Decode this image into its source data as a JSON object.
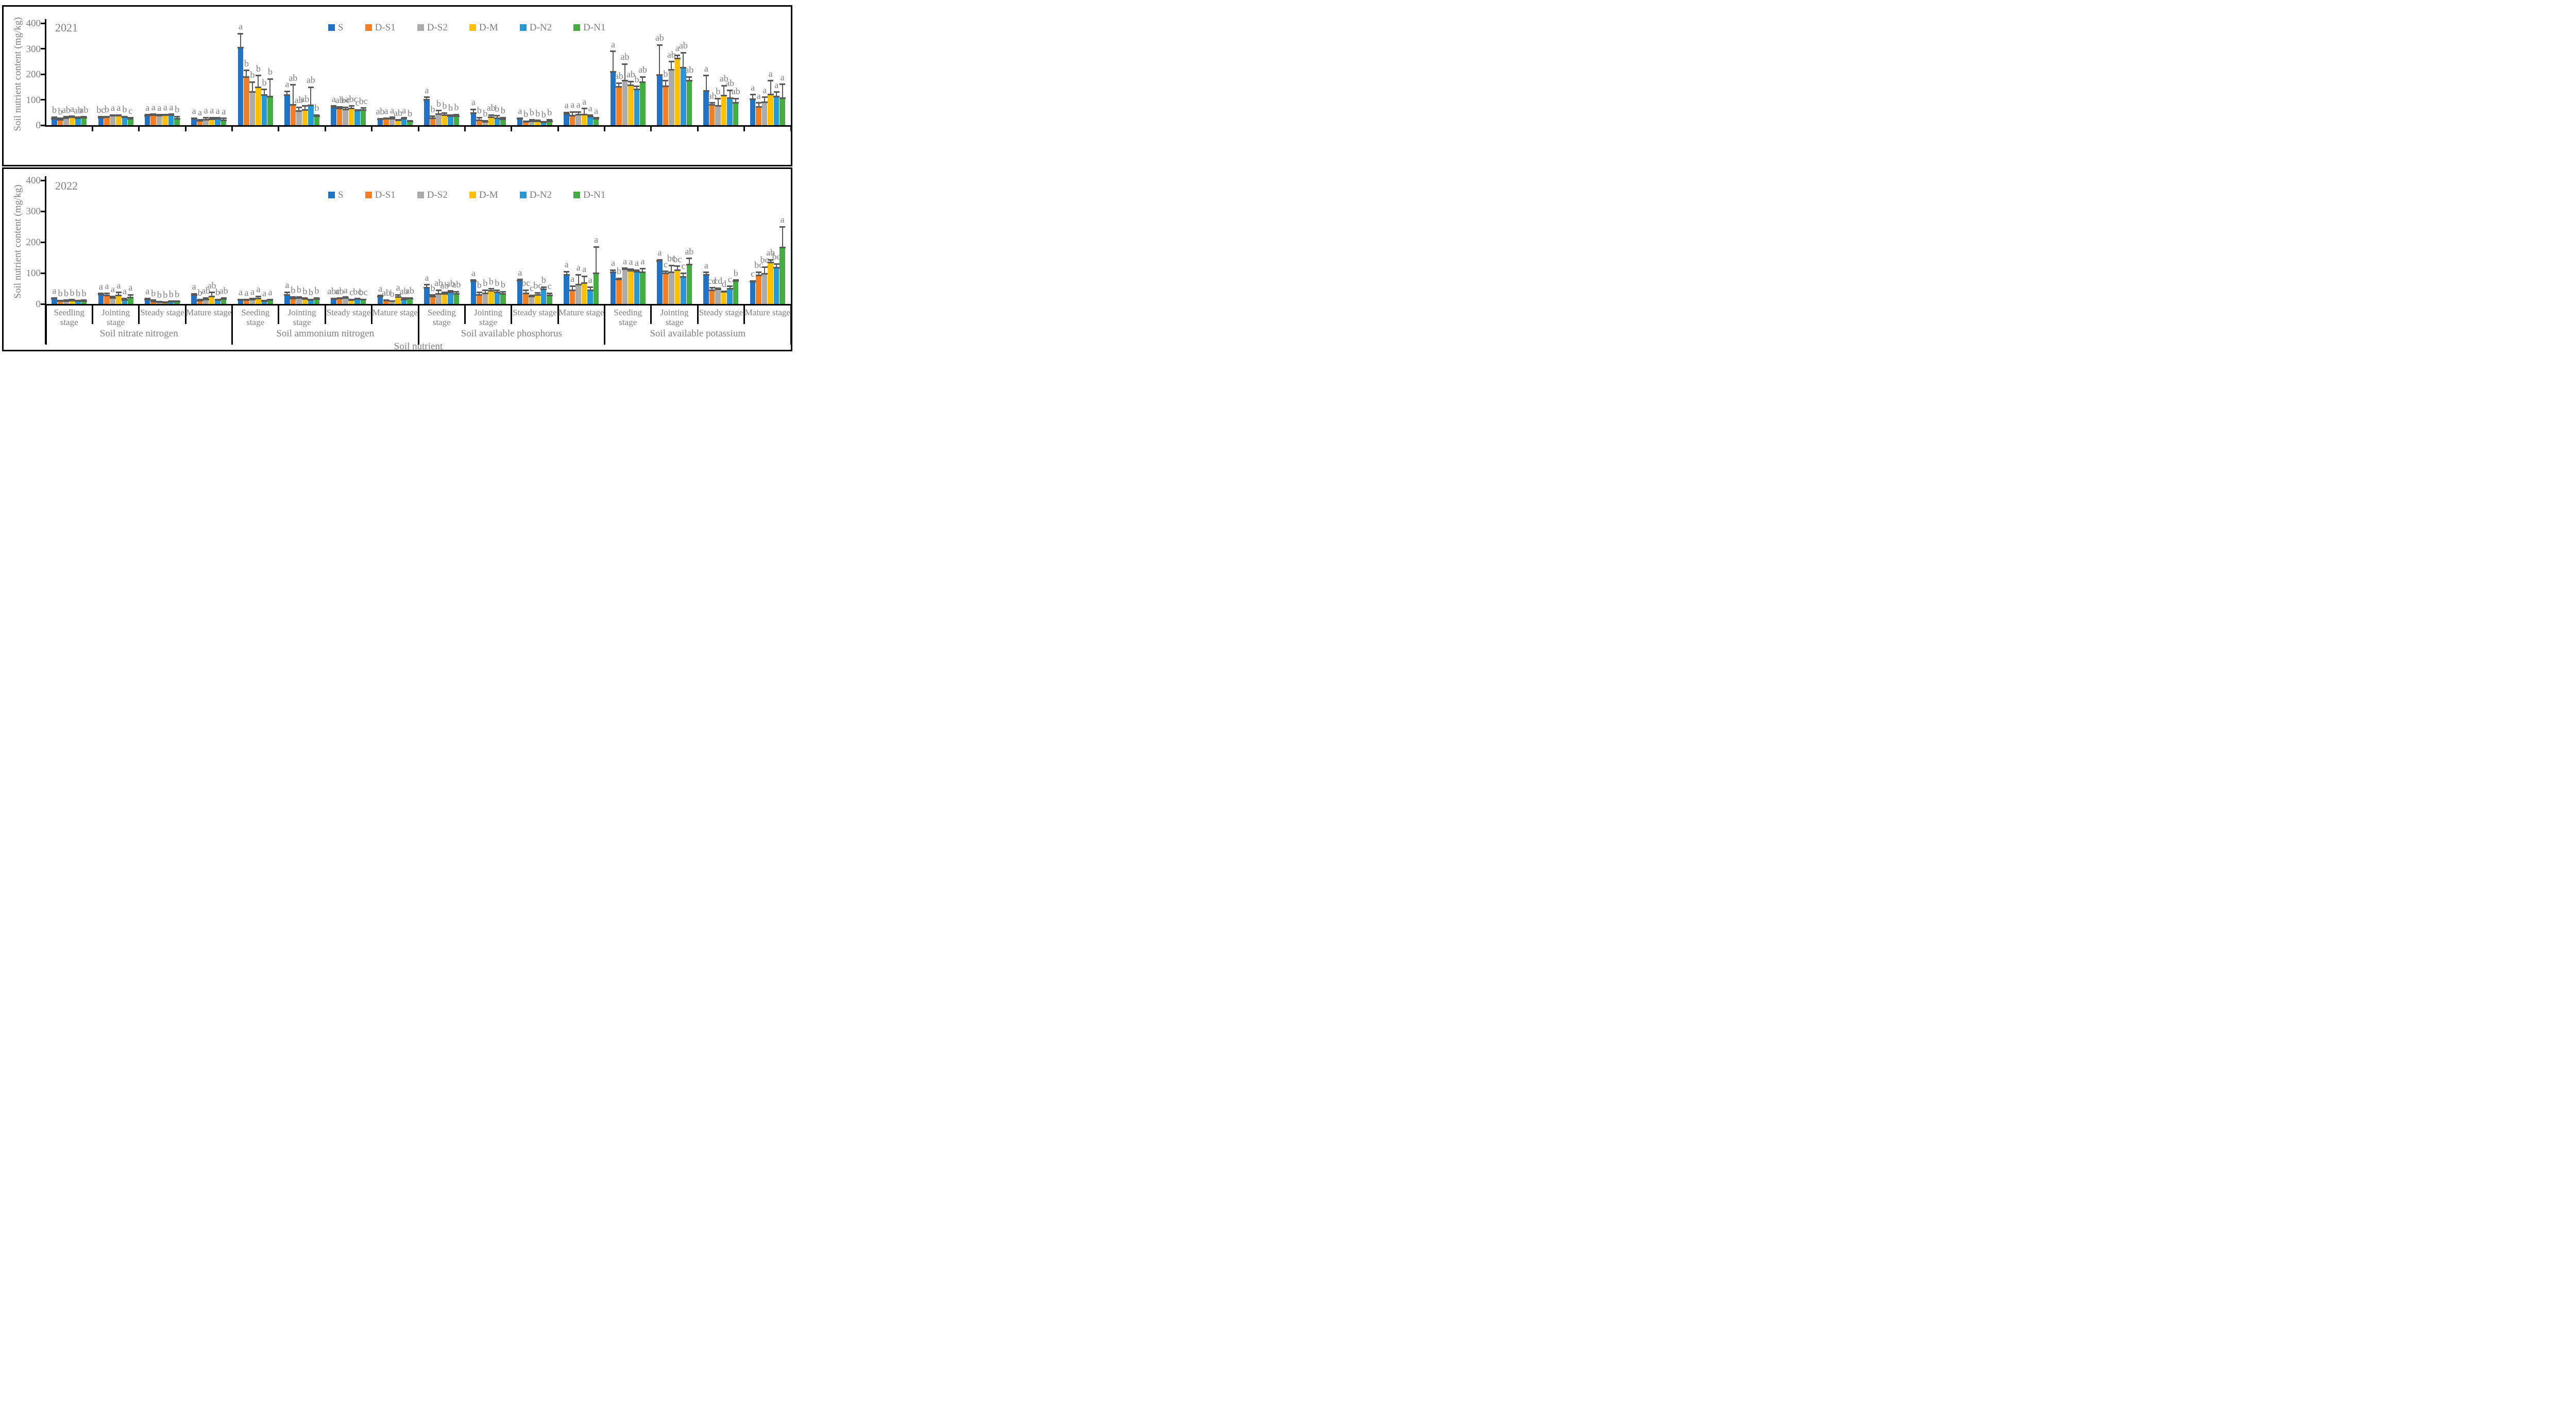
{
  "figure": {
    "y_axis_label": "Soil nutrient content (mg/kg)",
    "x_axis_label": "Soil nutrient",
    "y_ticks": [
      0,
      100,
      200,
      300,
      400
    ],
    "text_color": "#7f7f7f",
    "error_bar_color": "#595959",
    "axis_color": "#000000",
    "legend": [
      {
        "label": "S",
        "color": "#1F72C6"
      },
      {
        "label": "D-S1",
        "color": "#F57E20"
      },
      {
        "label": "D-S2",
        "color": "#ABABAB"
      },
      {
        "label": "D-M",
        "color": "#FFC000"
      },
      {
        "label": "D-N2",
        "color": "#2599D8"
      },
      {
        "label": "D-N1",
        "color": "#43AD43"
      }
    ],
    "nutrients": [
      "Soil nitrate nitrogen",
      "Soil ammonium nitrogen",
      "Soil available phosphorus",
      "Soil available potassium"
    ],
    "stage_labels": [
      [
        "Seedling",
        "stage"
      ],
      [
        "Jointing",
        "stage"
      ],
      [
        "Steady stage"
      ],
      [
        "Mature stage"
      ],
      [
        "Seeding",
        "stage"
      ],
      [
        "Jointing",
        "stage"
      ],
      [
        "Steady stage"
      ],
      [
        "Mature stage"
      ],
      [
        "Seeding",
        "stage"
      ],
      [
        "Jointing",
        "stage"
      ],
      [
        "Steady stage"
      ],
      [
        "Mature stage"
      ],
      [
        "Seeding",
        "stage"
      ],
      [
        "Jointing",
        "stage"
      ],
      [
        "Steady stage"
      ],
      [
        "Mature stage"
      ]
    ]
  },
  "chart_data": [
    {
      "year": "2021",
      "type": "bar",
      "ylim": [
        0,
        400
      ],
      "ylabel": "Soil nutrient content (mg/kg)",
      "series": [
        "S",
        "D-S1",
        "D-S2",
        "D-M",
        "D-N2",
        "D-N1"
      ],
      "legend_position": "top-center",
      "groups": [
        {
          "nutrient": "Soil nitrate nitrogen",
          "stage": "Seedling stage",
          "values": [
            25,
            22,
            27,
            32,
            28,
            29
          ],
          "errors": [
            7,
            5,
            6,
            4,
            3,
            4
          ],
          "letters": [
            "b",
            "b",
            "ab",
            "a",
            "ab",
            "ab"
          ]
        },
        {
          "nutrient": "Soil nitrate nitrogen",
          "stage": "Jointing stage",
          "values": [
            30,
            31,
            38,
            38,
            32,
            25
          ],
          "errors": [
            3,
            3,
            2,
            2,
            2,
            4
          ],
          "letters": [
            "bc",
            "b",
            "a",
            "a",
            "b",
            "c"
          ]
        },
        {
          "nutrient": "Soil nitrate nitrogen",
          "stage": "Steady stage",
          "values": [
            38,
            40,
            37,
            39,
            40,
            25
          ],
          "errors": [
            3,
            3,
            4,
            3,
            3,
            9
          ],
          "letters": [
            "a",
            "a",
            "a",
            "a",
            "a",
            "b"
          ]
        },
        {
          "nutrient": "Soil nitrate nitrogen",
          "stage": "Mature stage",
          "values": [
            25,
            17,
            22,
            23,
            26,
            20
          ],
          "errors": [
            3,
            5,
            8,
            7,
            3,
            7
          ],
          "letters": [
            "a",
            "a",
            "a",
            "a",
            "a",
            "a"
          ]
        },
        {
          "nutrient": "Soil ammonium nitrogen",
          "stage": "Seeding stage",
          "values": [
            305,
            190,
            130,
            148,
            118,
            112
          ],
          "errors": [
            55,
            25,
            40,
            47,
            22,
            70
          ],
          "letters": [
            "a",
            "b",
            "b",
            "b",
            "b",
            "b"
          ]
        },
        {
          "nutrient": "Soil ammonium nitrogen",
          "stage": "Jointing stage",
          "values": [
            118,
            80,
            55,
            60,
            77,
            35
          ],
          "errors": [
            15,
            78,
            15,
            15,
            72,
            5
          ],
          "letters": [
            "a",
            "ab",
            "ab",
            "ab",
            "ab",
            "b"
          ]
        },
        {
          "nutrient": "Soil ammonium nitrogen",
          "stage": "Steady stage",
          "values": [
            70,
            66,
            62,
            65,
            57,
            60
          ],
          "errors": [
            5,
            5,
            8,
            10,
            3,
            7
          ],
          "letters": [
            "a",
            "ab",
            "bc",
            "abc",
            "c",
            "bc"
          ]
        },
        {
          "nutrient": "Soil ammonium nitrogen",
          "stage": "Mature stage",
          "values": [
            23,
            25,
            26,
            19,
            26,
            16
          ],
          "errors": [
            3,
            3,
            5,
            2,
            4,
            2
          ],
          "letters": [
            "ab",
            "a",
            "a",
            "ab",
            "a",
            "b"
          ]
        },
        {
          "nutrient": "Soil available phosphorus",
          "stage": "Seeding stage",
          "values": [
            100,
            27,
            43,
            40,
            35,
            35
          ],
          "errors": [
            10,
            8,
            14,
            8,
            5,
            7
          ],
          "letters": [
            "a",
            "b",
            "b",
            "b",
            "b",
            "b"
          ]
        },
        {
          "nutrient": "Soil available phosphorus",
          "stage": "Jointing stage",
          "values": [
            48,
            20,
            13,
            32,
            28,
            23
          ],
          "errors": [
            14,
            10,
            5,
            8,
            9,
            7
          ],
          "letters": [
            "a",
            "b",
            "b",
            "ab",
            "b",
            "b"
          ]
        },
        {
          "nutrient": "Soil available phosphorus",
          "stage": "Steady stage",
          "values": [
            25,
            13,
            16,
            16,
            12,
            15
          ],
          "errors": [
            3,
            3,
            6,
            3,
            2,
            7
          ],
          "letters": [
            "a",
            "b",
            "b",
            "b",
            "b",
            "b"
          ]
        },
        {
          "nutrient": "Soil available phosphorus",
          "stage": "Mature stage",
          "values": [
            43,
            38,
            41,
            42,
            33,
            26
          ],
          "errors": [
            7,
            14,
            11,
            23,
            6,
            3
          ],
          "letters": [
            "a",
            "a",
            "a",
            "a",
            "a",
            "a"
          ]
        },
        {
          "nutrient": "Soil available potassium",
          "stage": "Seeding stage",
          "values": [
            210,
            150,
            175,
            157,
            140,
            170
          ],
          "errors": [
            80,
            15,
            65,
            15,
            12,
            20
          ],
          "letters": [
            "a",
            "ab",
            "ab",
            "ab",
            "b",
            "ab"
          ]
        },
        {
          "nutrient": "Soil available potassium",
          "stage": "Jointing stage",
          "values": [
            198,
            153,
            218,
            263,
            225,
            175
          ],
          "errors": [
            117,
            22,
            32,
            12,
            60,
            15
          ],
          "letters": [
            "ab",
            "b",
            "ab",
            "a",
            "ab",
            "ab"
          ]
        },
        {
          "nutrient": "Soil available potassium",
          "stage": "Steady stage",
          "values": [
            135,
            80,
            75,
            117,
            107,
            88
          ],
          "errors": [
            60,
            8,
            30,
            38,
            30,
            17
          ],
          "letters": [
            "a",
            "ab",
            "b",
            "ab",
            "ab",
            "ab"
          ]
        },
        {
          "nutrient": "Soil available potassium",
          "stage": "Mature stage",
          "values": [
            103,
            72,
            90,
            120,
            112,
            107
          ],
          "errors": [
            17,
            16,
            20,
            55,
            18,
            53
          ],
          "letters": [
            "a",
            "a",
            "a",
            "a",
            "a",
            "a"
          ]
        }
      ]
    },
    {
      "year": "2022",
      "type": "bar",
      "ylim": [
        0,
        400
      ],
      "ylabel": "Soil nutrient content (mg/kg)",
      "series": [
        "S",
        "D-S1",
        "D-S2",
        "D-M",
        "D-N2",
        "D-N1"
      ],
      "legend_position": "top-center",
      "groups": [
        {
          "nutrient": "Soil nitrate nitrogen",
          "stage": "Seedling stage",
          "values": [
            17,
            9,
            10,
            11,
            9,
            10
          ],
          "errors": [
            3,
            2,
            2,
            3,
            2,
            2
          ],
          "letters": [
            "a",
            "b",
            "b",
            "b",
            "b",
            "b"
          ]
        },
        {
          "nutrient": "Soil nitrate nitrogen",
          "stage": "Jointing stage",
          "values": [
            31,
            27,
            20,
            27,
            13,
            21
          ],
          "errors": [
            3,
            8,
            5,
            10,
            5,
            9
          ],
          "letters": [
            "a",
            "a",
            "a",
            "a",
            "a",
            "a"
          ]
        },
        {
          "nutrient": "Soil nitrate nitrogen",
          "stage": "Steady stage",
          "values": [
            14,
            7,
            6,
            5,
            7,
            8
          ],
          "errors": [
            4,
            5,
            1,
            1,
            2,
            1
          ],
          "letters": [
            "a",
            "b",
            "b",
            "b",
            "b",
            "b"
          ]
        },
        {
          "nutrient": "Soil nitrate nitrogen",
          "stage": "Mature stage",
          "values": [
            30,
            11,
            15,
            24,
            12,
            16
          ],
          "errors": [
            3,
            3,
            5,
            13,
            3,
            4
          ],
          "letters": [
            "a",
            "b",
            "ab",
            "ab",
            "b",
            "ab"
          ]
        },
        {
          "nutrient": "Soil ammonium nitrogen",
          "stage": "Seeding stage",
          "values": [
            13,
            12,
            14,
            18,
            9,
            13
          ],
          "errors": [
            2,
            2,
            3,
            7,
            2,
            2
          ],
          "letters": [
            "a",
            "a",
            "a",
            "a",
            "a",
            "a"
          ]
        },
        {
          "nutrient": "Soil ammonium nitrogen",
          "stage": "Jointing stage",
          "values": [
            30,
            18,
            19,
            16,
            12,
            16
          ],
          "errors": [
            8,
            4,
            4,
            3,
            3,
            4
          ],
          "letters": [
            "a",
            "b",
            "b",
            "b",
            "b",
            "b"
          ]
        },
        {
          "nutrient": "Soil ammonium nitrogen",
          "stage": "Steady stage",
          "values": [
            16,
            17,
            20,
            13,
            16,
            14
          ],
          "errors": [
            2,
            2,
            2,
            2,
            1,
            1
          ],
          "letters": [
            "abc",
            "ab",
            "a",
            "c",
            "bc",
            "bc"
          ]
        },
        {
          "nutrient": "Soil ammonium nitrogen",
          "stage": "Mature stage",
          "values": [
            24,
            11,
            9,
            23,
            14,
            17
          ],
          "errors": [
            3,
            2,
            1,
            7,
            5,
            3
          ],
          "letters": [
            "a",
            "ab",
            "b",
            "a",
            "ab",
            "ab"
          ]
        },
        {
          "nutrient": "Soil available phosphorus",
          "stage": "Seeding stage",
          "values": [
            53,
            25,
            33,
            33,
            38,
            32
          ],
          "errors": [
            9,
            4,
            12,
            4,
            5,
            8
          ],
          "letters": [
            "a",
            "b",
            "ab",
            "ab",
            "ab",
            "ab"
          ]
        },
        {
          "nutrient": "Soil available phosphorus",
          "stage": "Jointing stage",
          "values": [
            75,
            30,
            35,
            42,
            37,
            32
          ],
          "errors": [
            2,
            8,
            10,
            8,
            8,
            8
          ],
          "letters": [
            "a",
            "b",
            "b",
            "b",
            "b",
            "b"
          ]
        },
        {
          "nutrient": "Soil available phosphorus",
          "stage": "Steady stage",
          "values": [
            76,
            35,
            25,
            30,
            47,
            28
          ],
          "errors": [
            3,
            10,
            3,
            6,
            8,
            7
          ],
          "letters": [
            "a",
            "bc",
            "c",
            "bc",
            "b",
            "c"
          ]
        },
        {
          "nutrient": "Soil available phosphorus",
          "stage": "Mature stage",
          "values": [
            95,
            45,
            62,
            67,
            45,
            100
          ],
          "errors": [
            10,
            13,
            33,
            23,
            10,
            85
          ],
          "letters": [
            "a",
            "a",
            "a",
            "a",
            "a",
            "a"
          ]
        },
        {
          "nutrient": "Soil available potassium",
          "stage": "Seeding stage",
          "values": [
            102,
            80,
            113,
            108,
            105,
            102
          ],
          "errors": [
            8,
            3,
            3,
            5,
            5,
            13
          ],
          "letters": [
            "a",
            "b",
            "a",
            "a",
            "a",
            "a"
          ]
        },
        {
          "nutrient": "Soil available potassium",
          "stage": "Jointing stage",
          "values": [
            140,
            100,
            102,
            110,
            88,
            127
          ],
          "errors": [
            3,
            6,
            23,
            12,
            12,
            20
          ],
          "letters": [
            "a",
            "c",
            "bc",
            "bc",
            "c",
            "ab"
          ]
        },
        {
          "nutrient": "Soil available potassium",
          "stage": "Steady stage",
          "values": [
            95,
            45,
            47,
            39,
            50,
            75
          ],
          "errors": [
            7,
            7,
            4,
            2,
            7,
            2
          ],
          "letters": [
            "a",
            "cd",
            "cd",
            "d",
            "c",
            "b"
          ]
        },
        {
          "nutrient": "Soil available potassium",
          "stage": "Mature stage",
          "values": [
            73,
            93,
            98,
            135,
            118,
            183
          ],
          "errors": [
            2,
            10,
            22,
            8,
            12,
            67
          ],
          "letters": [
            "c",
            "bc",
            "bc",
            "ab",
            "bc",
            "a"
          ]
        }
      ]
    }
  ]
}
